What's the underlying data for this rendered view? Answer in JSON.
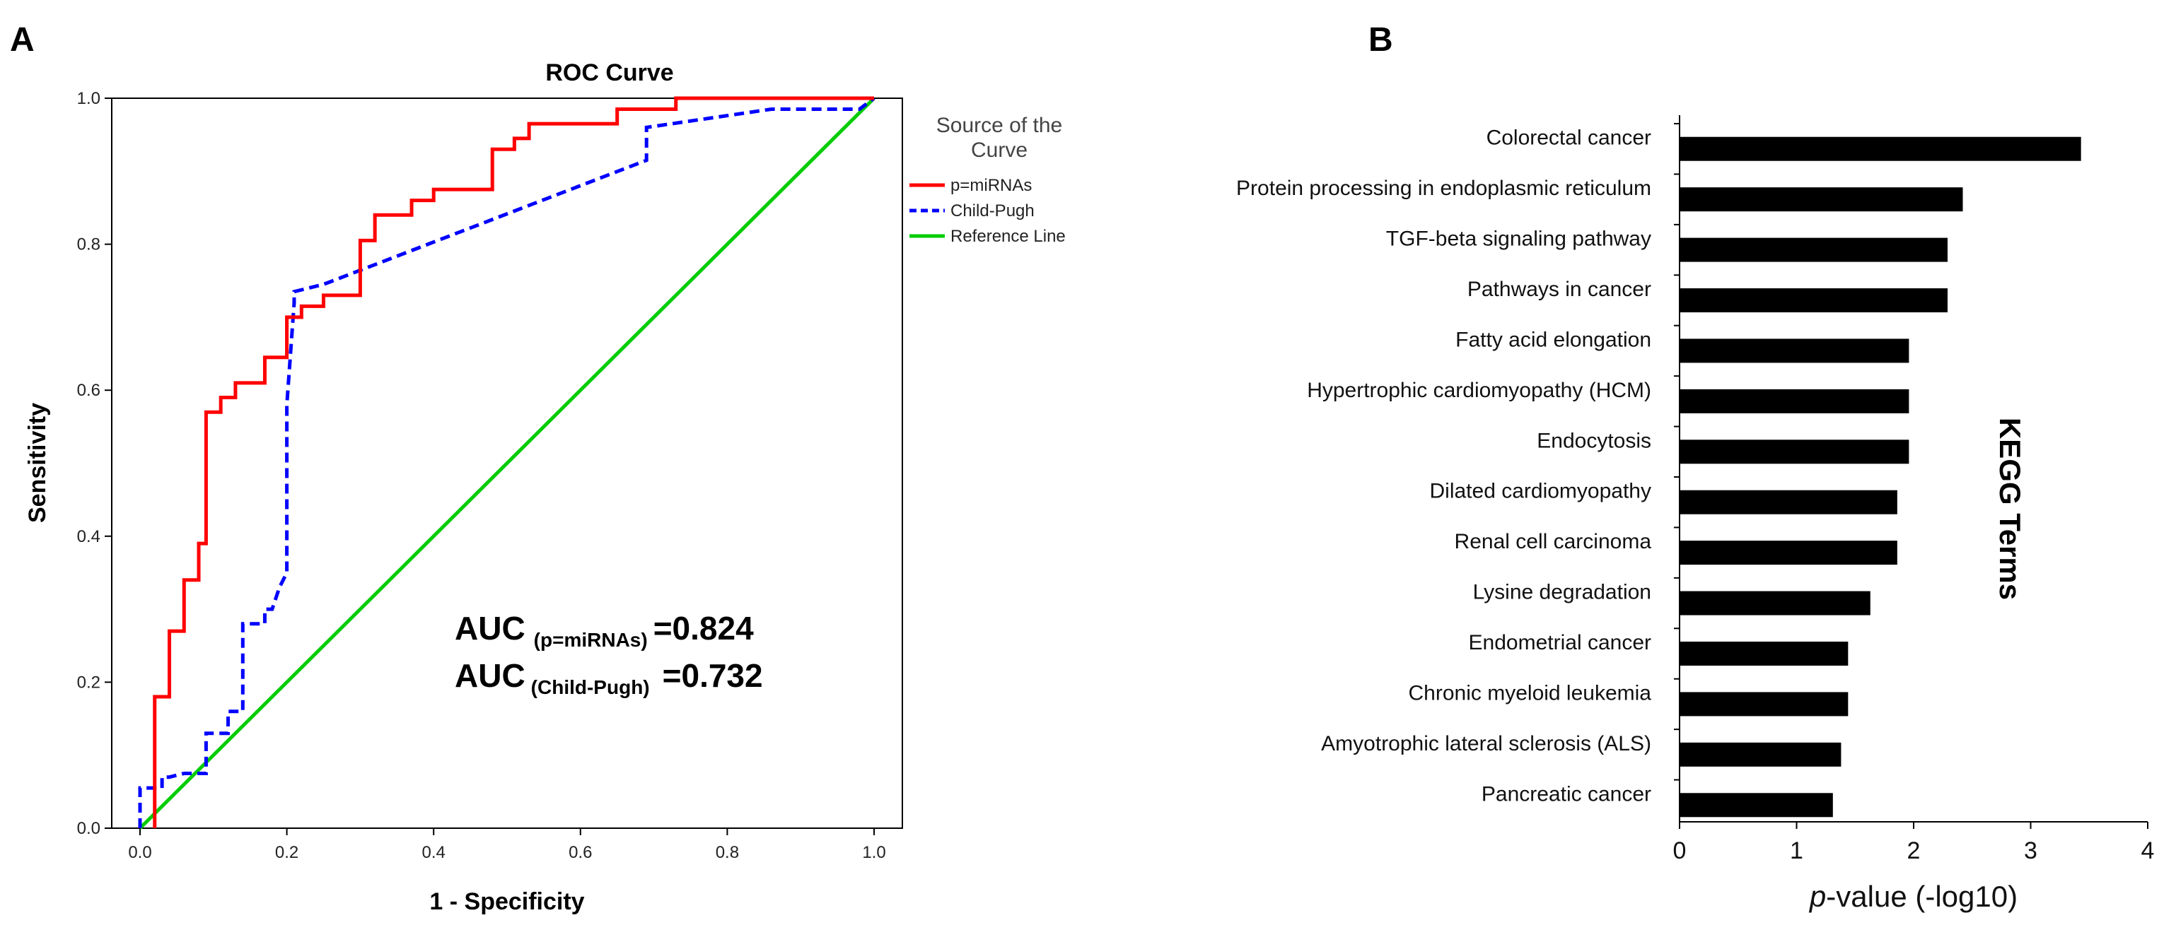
{
  "panels": {
    "a": "A",
    "b": "B"
  },
  "chart_data": [
    {
      "type": "line",
      "title": "ROC Curve",
      "xlabel": "1 - Specificity",
      "ylabel": "Sensitivity",
      "xlim": [
        0,
        1
      ],
      "ylim": [
        0,
        1
      ],
      "xticks": [
        "0.0",
        "0.2",
        "0.4",
        "0.6",
        "0.8",
        "1.0"
      ],
      "yticks": [
        "0.0",
        "0.2",
        "0.4",
        "0.6",
        "0.8",
        "1.0"
      ],
      "legend_title": "Source of the Curve",
      "legend_position": "right",
      "series": [
        {
          "name": "p=miRNAs",
          "color": "#ff0000",
          "style": "solid",
          "points": [
            [
              0.02,
              0.0
            ],
            [
              0.02,
              0.18
            ],
            [
              0.04,
              0.18
            ],
            [
              0.04,
              0.27
            ],
            [
              0.06,
              0.27
            ],
            [
              0.06,
              0.34
            ],
            [
              0.08,
              0.34
            ],
            [
              0.08,
              0.39
            ],
            [
              0.09,
              0.39
            ],
            [
              0.09,
              0.57
            ],
            [
              0.11,
              0.57
            ],
            [
              0.11,
              0.59
            ],
            [
              0.13,
              0.59
            ],
            [
              0.13,
              0.61
            ],
            [
              0.17,
              0.61
            ],
            [
              0.17,
              0.645
            ],
            [
              0.2,
              0.645
            ],
            [
              0.2,
              0.7
            ],
            [
              0.22,
              0.7
            ],
            [
              0.22,
              0.715
            ],
            [
              0.25,
              0.715
            ],
            [
              0.25,
              0.73
            ],
            [
              0.3,
              0.73
            ],
            [
              0.3,
              0.805
            ],
            [
              0.32,
              0.805
            ],
            [
              0.32,
              0.84
            ],
            [
              0.37,
              0.84
            ],
            [
              0.37,
              0.86
            ],
            [
              0.4,
              0.86
            ],
            [
              0.4,
              0.875
            ],
            [
              0.48,
              0.875
            ],
            [
              0.48,
              0.93
            ],
            [
              0.51,
              0.93
            ],
            [
              0.51,
              0.945
            ],
            [
              0.53,
              0.945
            ],
            [
              0.53,
              0.965
            ],
            [
              0.65,
              0.965
            ],
            [
              0.65,
              0.985
            ],
            [
              0.73,
              0.985
            ],
            [
              0.73,
              1.0
            ],
            [
              1.0,
              1.0
            ]
          ]
        },
        {
          "name": "Child-Pugh",
          "color": "#0000ff",
          "style": "dashed",
          "points": [
            [
              0.0,
              0.0
            ],
            [
              0.0,
              0.055
            ],
            [
              0.03,
              0.055
            ],
            [
              0.03,
              0.07
            ],
            [
              0.04,
              0.07
            ],
            [
              0.06,
              0.075
            ],
            [
              0.09,
              0.075
            ],
            [
              0.09,
              0.13
            ],
            [
              0.12,
              0.13
            ],
            [
              0.12,
              0.16
            ],
            [
              0.14,
              0.16
            ],
            [
              0.14,
              0.28
            ],
            [
              0.17,
              0.28
            ],
            [
              0.17,
              0.3
            ],
            [
              0.18,
              0.3
            ],
            [
              0.19,
              0.33
            ],
            [
              0.2,
              0.35
            ],
            [
              0.2,
              0.58
            ],
            [
              0.21,
              0.72
            ],
            [
              0.21,
              0.735
            ],
            [
              0.25,
              0.745
            ],
            [
              0.69,
              0.915
            ],
            [
              0.69,
              0.96
            ],
            [
              0.86,
              0.985
            ],
            [
              0.98,
              0.985
            ],
            [
              1.0,
              1.0
            ]
          ]
        },
        {
          "name": "Reference Line",
          "color": "#00cc00",
          "style": "solid",
          "points": [
            [
              0,
              0
            ],
            [
              1,
              1
            ]
          ]
        }
      ],
      "annotations": {
        "auc1_prefix": "AUC",
        "auc1_sub": "(p=miRNAs)",
        "auc1_value": "=0.824",
        "auc2_prefix": "AUC",
        "auc2_sub": "(Child-Pugh)",
        "auc2_value": "=0.732"
      }
    },
    {
      "type": "bar",
      "orientation": "horizontal",
      "categories": [
        "Colorectal cancer",
        "Protein processing in endoplasmic reticulum",
        "TGF-beta signaling pathway",
        "Pathways in cancer",
        "Fatty acid elongation",
        "Hypertrophic cardiomyopathy (HCM)",
        "Endocytosis",
        "Dilated cardiomyopathy",
        "Renal cell carcinoma",
        "Lysine degradation",
        "Endometrial cancer",
        "Chronic myeloid leukemia",
        "Amyotrophic lateral sclerosis (ALS)",
        "Pancreatic cancer"
      ],
      "values": [
        3.43,
        2.42,
        2.29,
        2.29,
        1.96,
        1.96,
        1.96,
        1.86,
        1.86,
        1.63,
        1.44,
        1.44,
        1.38,
        1.31
      ],
      "xlim": [
        0,
        4
      ],
      "xticks": [
        "0",
        "1",
        "2",
        "3",
        "4"
      ],
      "xlabel_italic": "p",
      "xlabel_rest": "-value (-log10)",
      "ylabel": "KEGG Terms",
      "bar_color": "#000000"
    }
  ]
}
